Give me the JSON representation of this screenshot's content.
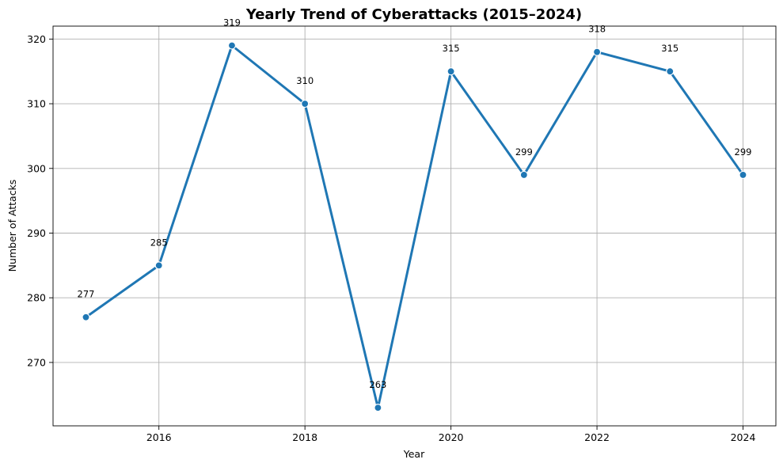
{
  "chart_data": {
    "type": "line",
    "title": "Yearly Trend of Cyberattacks (2015–2024)",
    "xlabel": "Year",
    "ylabel": "Number of Attacks",
    "x": [
      2015,
      2016,
      2017,
      2018,
      2019,
      2020,
      2021,
      2022,
      2023,
      2024
    ],
    "series": [
      {
        "values": [
          277,
          285,
          319,
          310,
          263,
          315,
          299,
          318,
          315,
          299
        ]
      }
    ],
    "xticks": [
      2016,
      2018,
      2020,
      2022,
      2024
    ],
    "yticks": [
      270,
      280,
      290,
      300,
      310,
      320
    ],
    "xlim": [
      2014.55,
      2024.45
    ],
    "ylim": [
      260.2,
      322.0
    ],
    "grid": true,
    "legend": "none",
    "line_color": "#1f77b4",
    "data_labels": true
  }
}
